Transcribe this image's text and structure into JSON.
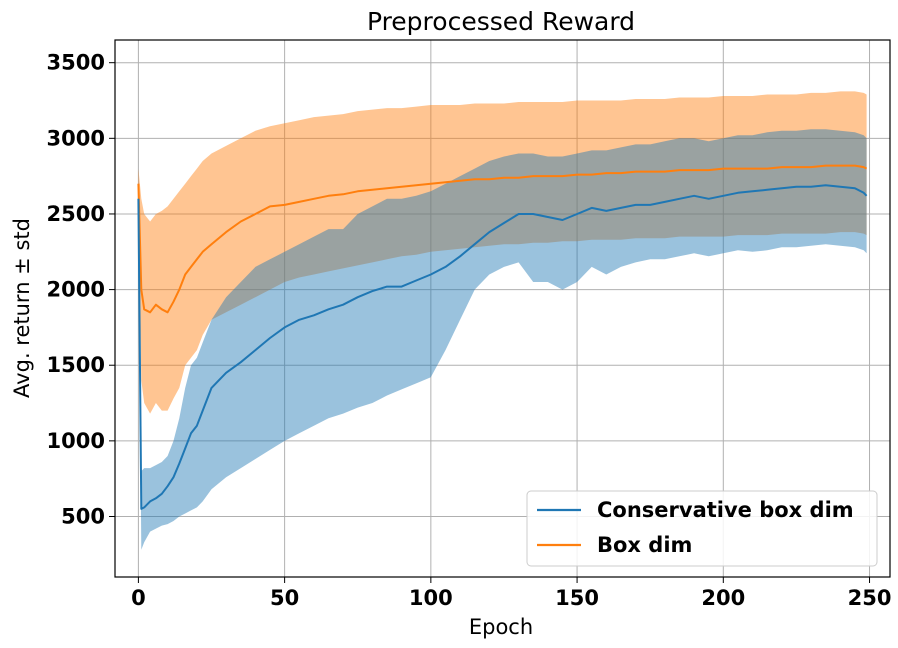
{
  "chart_data": {
    "type": "line",
    "title": "Preprocessed Reward",
    "xlabel": "Epoch",
    "ylabel": "Avg. return ± std",
    "xlim": [
      -8,
      257
    ],
    "ylim": [
      100,
      3650
    ],
    "xticks": [
      0,
      50,
      100,
      150,
      200,
      250
    ],
    "yticks": [
      500,
      1000,
      1500,
      2000,
      2500,
      3000,
      3500
    ],
    "grid": true,
    "legend_position": "lower-right",
    "x": [
      0,
      1,
      2,
      4,
      6,
      8,
      10,
      12,
      14,
      16,
      18,
      20,
      22,
      25,
      30,
      35,
      40,
      45,
      50,
      55,
      60,
      65,
      70,
      75,
      80,
      85,
      90,
      95,
      100,
      105,
      110,
      115,
      120,
      125,
      130,
      135,
      140,
      145,
      150,
      155,
      160,
      165,
      170,
      175,
      180,
      185,
      190,
      195,
      200,
      205,
      210,
      215,
      220,
      225,
      230,
      235,
      240,
      245,
      248,
      249
    ],
    "series": [
      {
        "name": "Conservative box dim",
        "color": "#1f77b4",
        "band_color": "#1f77b4",
        "mean": [
          2600,
          550,
          560,
          600,
          620,
          650,
          700,
          760,
          850,
          950,
          1050,
          1100,
          1200,
          1350,
          1450,
          1520,
          1600,
          1680,
          1750,
          1800,
          1830,
          1870,
          1900,
          1950,
          1990,
          2020,
          2020,
          2060,
          2100,
          2150,
          2220,
          2300,
          2380,
          2440,
          2500,
          2500,
          2480,
          2460,
          2500,
          2540,
          2520,
          2540,
          2560,
          2560,
          2580,
          2600,
          2620,
          2600,
          2620,
          2640,
          2650,
          2660,
          2670,
          2680,
          2680,
          2690,
          2680,
          2670,
          2640,
          2620
        ],
        "upper": [
          2640,
          800,
          820,
          820,
          840,
          860,
          900,
          1000,
          1150,
          1350,
          1500,
          1550,
          1650,
          1800,
          1950,
          2050,
          2150,
          2200,
          2250,
          2300,
          2350,
          2400,
          2400,
          2500,
          2550,
          2600,
          2600,
          2620,
          2650,
          2700,
          2750,
          2800,
          2850,
          2880,
          2900,
          2900,
          2880,
          2880,
          2900,
          2920,
          2920,
          2940,
          2960,
          2960,
          2980,
          3000,
          3000,
          2980,
          3000,
          3020,
          3020,
          3040,
          3050,
          3050,
          3060,
          3060,
          3050,
          3040,
          3020,
          3000
        ],
        "lower": [
          2550,
          280,
          330,
          400,
          420,
          440,
          450,
          470,
          500,
          520,
          540,
          560,
          600,
          680,
          760,
          820,
          880,
          940,
          1000,
          1050,
          1100,
          1150,
          1180,
          1220,
          1250,
          1300,
          1340,
          1380,
          1420,
          1600,
          1800,
          2000,
          2100,
          2150,
          2180,
          2050,
          2050,
          2000,
          2050,
          2150,
          2100,
          2150,
          2180,
          2200,
          2200,
          2220,
          2240,
          2220,
          2240,
          2260,
          2250,
          2260,
          2280,
          2280,
          2290,
          2300,
          2290,
          2280,
          2260,
          2240
        ]
      },
      {
        "name": "Box dim",
        "color": "#ff7f0e",
        "band_color": "#ff7f0e",
        "mean": [
          2700,
          2000,
          1870,
          1850,
          1900,
          1870,
          1850,
          1920,
          2000,
          2100,
          2150,
          2200,
          2250,
          2300,
          2380,
          2450,
          2500,
          2550,
          2560,
          2580,
          2600,
          2620,
          2630,
          2650,
          2660,
          2670,
          2680,
          2690,
          2700,
          2710,
          2720,
          2730,
          2730,
          2740,
          2740,
          2750,
          2750,
          2750,
          2760,
          2760,
          2770,
          2770,
          2780,
          2780,
          2780,
          2790,
          2790,
          2790,
          2800,
          2800,
          2800,
          2800,
          2810,
          2810,
          2810,
          2820,
          2820,
          2820,
          2810,
          2800
        ],
        "upper": [
          2800,
          2600,
          2500,
          2450,
          2500,
          2520,
          2550,
          2600,
          2650,
          2700,
          2750,
          2800,
          2850,
          2900,
          2950,
          3000,
          3050,
          3080,
          3100,
          3120,
          3140,
          3150,
          3160,
          3180,
          3190,
          3200,
          3200,
          3210,
          3220,
          3220,
          3220,
          3230,
          3230,
          3230,
          3240,
          3240,
          3240,
          3240,
          3250,
          3250,
          3250,
          3250,
          3260,
          3260,
          3260,
          3270,
          3270,
          3270,
          3280,
          3280,
          3280,
          3290,
          3290,
          3290,
          3300,
          3300,
          3310,
          3310,
          3300,
          3290
        ],
        "lower": [
          2600,
          1400,
          1250,
          1180,
          1250,
          1200,
          1200,
          1280,
          1350,
          1500,
          1550,
          1600,
          1700,
          1800,
          1850,
          1900,
          1950,
          2000,
          2050,
          2080,
          2100,
          2120,
          2140,
          2160,
          2180,
          2200,
          2220,
          2230,
          2250,
          2260,
          2270,
          2280,
          2290,
          2300,
          2300,
          2310,
          2310,
          2320,
          2320,
          2330,
          2330,
          2330,
          2340,
          2340,
          2340,
          2350,
          2350,
          2350,
          2350,
          2360,
          2360,
          2360,
          2370,
          2370,
          2370,
          2370,
          2380,
          2380,
          2370,
          2360
        ]
      }
    ]
  }
}
